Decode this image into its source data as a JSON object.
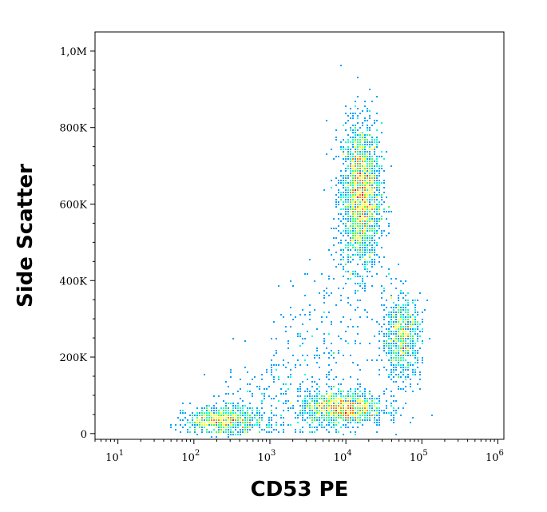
{
  "chart_data": {
    "type": "scatter",
    "title": "",
    "xlabel": "CD53 PE",
    "ylabel": "Side Scatter",
    "x_scale": "log",
    "xlim": [
      5,
      1200000
    ],
    "ylim": [
      -15000,
      1050000
    ],
    "grid": false,
    "legend": "none",
    "x_ticks": [
      {
        "value": 10,
        "base": "10",
        "exp": "1"
      },
      {
        "value": 100,
        "base": "10",
        "exp": "2"
      },
      {
        "value": 1000,
        "base": "10",
        "exp": "3"
      },
      {
        "value": 10000,
        "base": "10",
        "exp": "4"
      },
      {
        "value": 100000,
        "base": "10",
        "exp": "5"
      },
      {
        "value": 1000000,
        "base": "10",
        "exp": "6"
      }
    ],
    "y_ticks": [
      {
        "value": 0,
        "label": "0"
      },
      {
        "value": 200000,
        "label": "200K"
      },
      {
        "value": 400000,
        "label": "400K"
      },
      {
        "value": 600000,
        "label": "600K"
      },
      {
        "value": 800000,
        "label": "800K"
      },
      {
        "value": 1000000,
        "label": "1,0M"
      }
    ],
    "density_colors": [
      "#0000ff",
      "#00a0ff",
      "#00ffd0",
      "#40ff40",
      "#ffff00",
      "#ff8000",
      "#ff0000"
    ],
    "populations": [
      {
        "center_x": 16000,
        "center_y": 620000,
        "spread_log_x": 0.13,
        "spread_y": 95000,
        "weight": 0.42
      },
      {
        "center_x": 9000,
        "center_y": 65000,
        "spread_log_x": 0.28,
        "spread_y": 22000,
        "weight": 0.22
      },
      {
        "center_x": 250,
        "center_y": 35000,
        "spread_log_x": 0.25,
        "spread_y": 16000,
        "weight": 0.12
      },
      {
        "center_x": 55000,
        "center_y": 250000,
        "spread_log_x": 0.13,
        "spread_y": 55000,
        "weight": 0.14
      }
    ]
  }
}
